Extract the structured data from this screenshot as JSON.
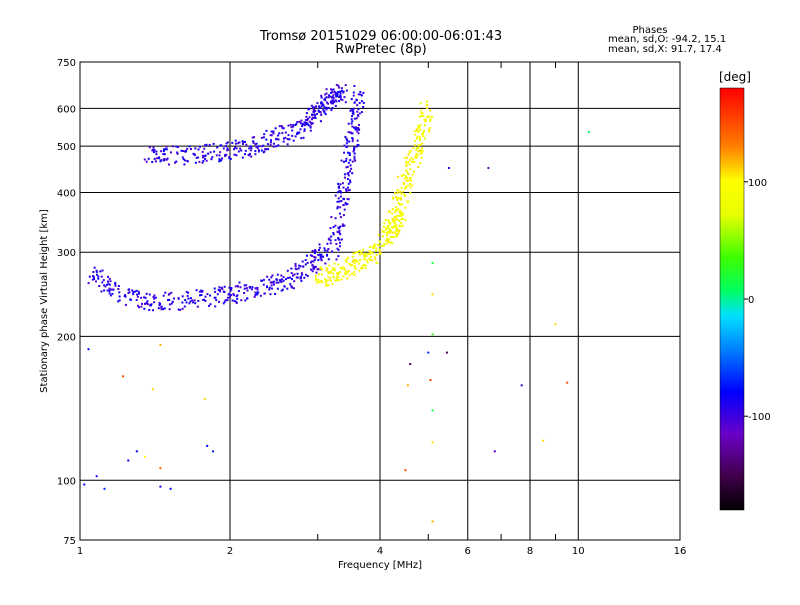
{
  "header": {
    "title_line1": "Tromsø 20151029 06:00:00-06:01:43",
    "title_line2": "RwPretec (8p)"
  },
  "stats": {
    "heading": "Phases",
    "line_o": "mean, sd,O: -94.2, 15.1",
    "line_x": "mean, sd,X:  91.7, 17.4"
  },
  "colorbar": {
    "label": "[deg]",
    "tick_labels": [
      "100",
      "0",
      "-100"
    ],
    "tick_values": [
      100,
      0,
      -100
    ],
    "range": [
      -180,
      180
    ]
  },
  "chart_data": {
    "type": "scatter",
    "title": "Tromsø 20151029 06:00:00-06:01:43",
    "subtitle": "RwPretec (8p)",
    "xlabel": "Frequency [MHz]",
    "ylabel": "Stationary phase Virtual Height [km]",
    "x_scale": "log",
    "y_scale": "log",
    "xlim": [
      1,
      16
    ],
    "ylim": [
      75,
      750
    ],
    "x_ticks": [
      1,
      2,
      4,
      6,
      8,
      10,
      16
    ],
    "x_tick_labels": [
      "1",
      "2",
      "4",
      "6",
      "8",
      "10",
      "16"
    ],
    "x_minor_ticks": [
      3,
      5,
      7,
      9
    ],
    "y_ticks": [
      75,
      100,
      200,
      300,
      400,
      500,
      600,
      750
    ],
    "y_tick_labels": [
      "75",
      "100",
      "200",
      "300",
      "400",
      "500",
      "600",
      "750"
    ],
    "grid": true,
    "series": [
      {
        "mode": "O",
        "phase_mean": -94.2,
        "phase_sd": 15.1,
        "segments": [
          {
            "x": [
              1.05,
              1.2,
              1.4,
              1.7,
              2.0,
              2.3,
              2.6,
              2.9,
              3.1
            ],
            "y": [
              270,
              245,
              236,
              238,
              245,
              252,
              262,
              280,
              300
            ]
          },
          {
            "x": [
              1.35,
              1.6,
              1.9,
              2.2,
              2.5,
              2.8,
              3.0,
              3.2,
              3.35
            ],
            "y": [
              480,
              478,
              485,
              500,
              520,
              550,
              590,
              630,
              645
            ]
          },
          {
            "x": [
              3.2,
              3.35,
              3.45,
              3.55,
              3.65
            ],
            "y": [
              300,
              380,
              460,
              550,
              640
            ]
          }
        ]
      },
      {
        "mode": "X",
        "phase_mean": 91.7,
        "phase_sd": 17.4,
        "segments": [
          {
            "x": [
              3.0,
              3.3,
              3.6,
              3.9,
              4.2,
              4.4
            ],
            "y": [
              265,
              272,
              285,
              300,
              330,
              360
            ]
          },
          {
            "x": [
              4.2,
              4.4,
              4.6,
              4.8,
              5.0
            ],
            "y": [
              330,
              390,
              450,
              520,
              610
            ]
          }
        ]
      }
    ],
    "outliers": [
      {
        "x": 1.02,
        "y": 98,
        "phase": -80
      },
      {
        "x": 1.08,
        "y": 102,
        "phase": -90
      },
      {
        "x": 1.12,
        "y": 96,
        "phase": -70
      },
      {
        "x": 1.04,
        "y": 188,
        "phase": -75
      },
      {
        "x": 1.25,
        "y": 110,
        "phase": -85
      },
      {
        "x": 1.3,
        "y": 115,
        "phase": -80
      },
      {
        "x": 1.45,
        "y": 97,
        "phase": -80
      },
      {
        "x": 1.52,
        "y": 96,
        "phase": -78
      },
      {
        "x": 1.22,
        "y": 165,
        "phase": 150
      },
      {
        "x": 1.4,
        "y": 155,
        "phase": 110
      },
      {
        "x": 1.45,
        "y": 192,
        "phase": 120
      },
      {
        "x": 1.78,
        "y": 148,
        "phase": 110
      },
      {
        "x": 1.8,
        "y": 118,
        "phase": -80
      },
      {
        "x": 1.85,
        "y": 115,
        "phase": -70
      },
      {
        "x": 1.35,
        "y": 112,
        "phase": 100
      },
      {
        "x": 1.45,
        "y": 106,
        "phase": 140
      },
      {
        "x": 4.5,
        "y": 105,
        "phase": 150
      },
      {
        "x": 4.55,
        "y": 158,
        "phase": 120
      },
      {
        "x": 4.6,
        "y": 175,
        "phase": -140
      },
      {
        "x": 5.0,
        "y": 185,
        "phase": -70
      },
      {
        "x": 5.05,
        "y": 162,
        "phase": 160
      },
      {
        "x": 5.1,
        "y": 140,
        "phase": 20
      },
      {
        "x": 5.1,
        "y": 120,
        "phase": 110
      },
      {
        "x": 5.1,
        "y": 82,
        "phase": 120
      },
      {
        "x": 5.45,
        "y": 185,
        "phase": -150
      },
      {
        "x": 6.8,
        "y": 115,
        "phase": -110
      },
      {
        "x": 7.7,
        "y": 158,
        "phase": -100
      },
      {
        "x": 8.5,
        "y": 121,
        "phase": 110
      },
      {
        "x": 9.0,
        "y": 212,
        "phase": 110
      },
      {
        "x": 9.5,
        "y": 160,
        "phase": 150
      },
      {
        "x": 10.5,
        "y": 535,
        "phase": 10
      },
      {
        "x": 6.6,
        "y": 450,
        "phase": -120
      },
      {
        "x": 5.5,
        "y": 450,
        "phase": -100
      },
      {
        "x": 5.1,
        "y": 245,
        "phase": 110
      },
      {
        "x": 5.1,
        "y": 202,
        "phase": 30
      },
      {
        "x": 5.1,
        "y": 285,
        "phase": 20
      }
    ]
  }
}
